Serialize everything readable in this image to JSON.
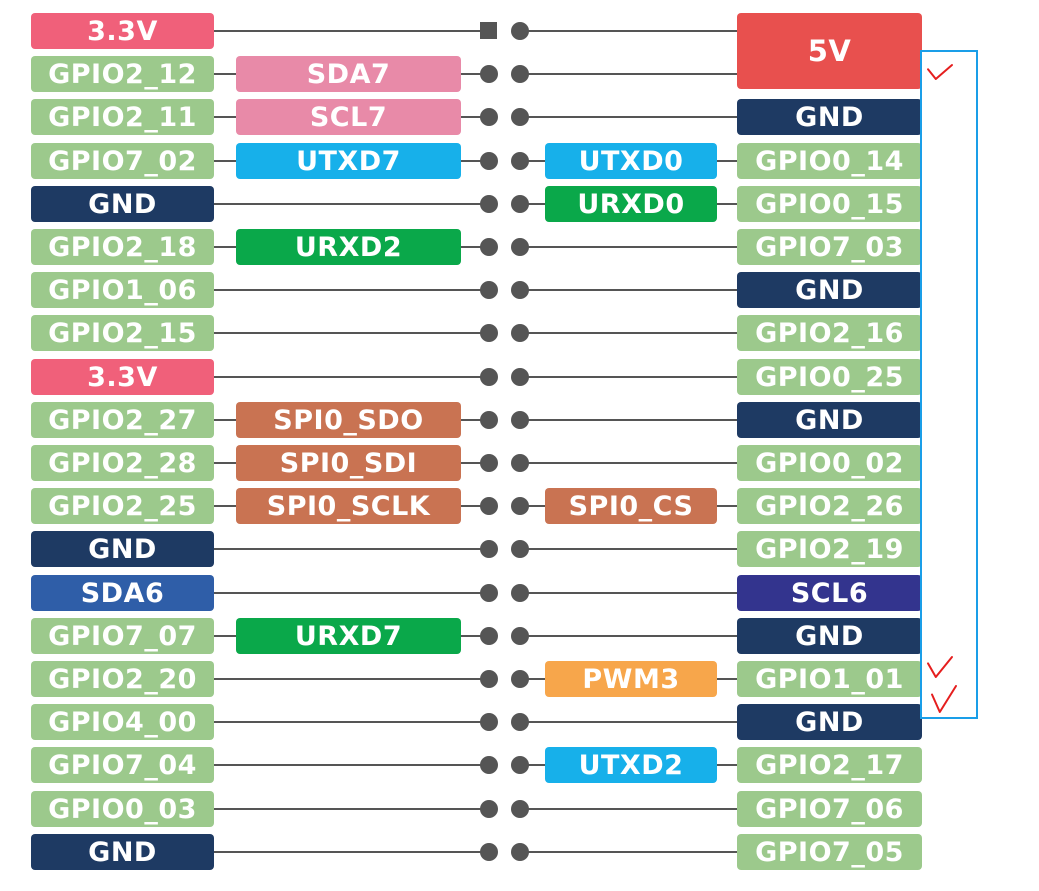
{
  "colors": {
    "power_3v3": "#f0607a",
    "power_5v": "#e8504e",
    "gpio": "#9cc98c",
    "gnd": "#1e3a63",
    "i2c7": "#e88aa8",
    "uart_blue": "#17b0ea",
    "uart_green": "#0aa84a",
    "spi": "#c97352",
    "sda6": "#2f5ea8",
    "scl6": "#33348e",
    "pwm": "#f7a64b",
    "bracket": "#1a9ee8",
    "check": "#e51e1e"
  },
  "rows": [
    {
      "left": {
        "label": "3.3V",
        "kind": "power_3v3"
      },
      "left_func": null,
      "right_func": null,
      "right": {
        "label": "5V",
        "kind": "power_5v"
      }
    },
    {
      "left": {
        "label": "GPIO2_12",
        "kind": "gpio"
      },
      "left_func": {
        "label": "SDA7",
        "kind": "i2c7"
      },
      "right_func": null,
      "right": null
    },
    {
      "left": {
        "label": "GPIO2_11",
        "kind": "gpio"
      },
      "left_func": {
        "label": "SCL7",
        "kind": "i2c7"
      },
      "right_func": null,
      "right": {
        "label": "GND",
        "kind": "gnd"
      }
    },
    {
      "left": {
        "label": "GPIO7_02",
        "kind": "gpio"
      },
      "left_func": {
        "label": "UTXD7",
        "kind": "uart_blue"
      },
      "right_func": {
        "label": "UTXD0",
        "kind": "uart_blue"
      },
      "right": {
        "label": "GPIO0_14",
        "kind": "gpio"
      }
    },
    {
      "left": {
        "label": "GND",
        "kind": "gnd"
      },
      "left_func": null,
      "right_func": {
        "label": "URXD0",
        "kind": "uart_green"
      },
      "right": {
        "label": "GPIO0_15",
        "kind": "gpio"
      }
    },
    {
      "left": {
        "label": "GPIO2_18",
        "kind": "gpio"
      },
      "left_func": {
        "label": "URXD2",
        "kind": "uart_green"
      },
      "right_func": null,
      "right": {
        "label": "GPIO7_03",
        "kind": "gpio"
      }
    },
    {
      "left": {
        "label": "GPIO1_06",
        "kind": "gpio"
      },
      "left_func": null,
      "right_func": null,
      "right": {
        "label": "GND",
        "kind": "gnd"
      }
    },
    {
      "left": {
        "label": "GPIO2_15",
        "kind": "gpio"
      },
      "left_func": null,
      "right_func": null,
      "right": {
        "label": "GPIO2_16",
        "kind": "gpio"
      }
    },
    {
      "left": {
        "label": "3.3V",
        "kind": "power_3v3"
      },
      "left_func": null,
      "right_func": null,
      "right": {
        "label": "GPIO0_25",
        "kind": "gpio"
      }
    },
    {
      "left": {
        "label": "GPIO2_27",
        "kind": "gpio"
      },
      "left_func": {
        "label": "SPI0_SDO",
        "kind": "spi"
      },
      "right_func": null,
      "right": {
        "label": "GND",
        "kind": "gnd"
      }
    },
    {
      "left": {
        "label": "GPIO2_28",
        "kind": "gpio"
      },
      "left_func": {
        "label": "SPI0_SDI",
        "kind": "spi"
      },
      "right_func": null,
      "right": {
        "label": "GPIO0_02",
        "kind": "gpio"
      }
    },
    {
      "left": {
        "label": "GPIO2_25",
        "kind": "gpio"
      },
      "left_func": {
        "label": "SPI0_SCLK",
        "kind": "spi"
      },
      "right_func": {
        "label": "SPI0_CS",
        "kind": "spi"
      },
      "right": {
        "label": "GPIO2_26",
        "kind": "gpio"
      }
    },
    {
      "left": {
        "label": "GND",
        "kind": "gnd"
      },
      "left_func": null,
      "right_func": null,
      "right": {
        "label": "GPIO2_19",
        "kind": "gpio"
      }
    },
    {
      "left": {
        "label": "SDA6",
        "kind": "sda6"
      },
      "left_func": null,
      "right_func": null,
      "right": {
        "label": "SCL6",
        "kind": "scl6"
      }
    },
    {
      "left": {
        "label": "GPIO7_07",
        "kind": "gpio"
      },
      "left_func": {
        "label": "URXD7",
        "kind": "uart_green"
      },
      "right_func": null,
      "right": {
        "label": "GND",
        "kind": "gnd"
      }
    },
    {
      "left": {
        "label": "GPIO2_20",
        "kind": "gpio"
      },
      "left_func": null,
      "right_func": {
        "label": "PWM3",
        "kind": "pwm"
      },
      "right": {
        "label": "GPIO1_01",
        "kind": "gpio"
      }
    },
    {
      "left": {
        "label": "GPIO4_00",
        "kind": "gpio"
      },
      "left_func": null,
      "right_func": null,
      "right": {
        "label": "GND",
        "kind": "gnd"
      }
    },
    {
      "left": {
        "label": "GPIO7_04",
        "kind": "gpio"
      },
      "left_func": null,
      "right_func": {
        "label": "UTXD2",
        "kind": "uart_blue"
      },
      "right": {
        "label": "GPIO2_17",
        "kind": "gpio"
      }
    },
    {
      "left": {
        "label": "GPIO0_03",
        "kind": "gpio"
      },
      "left_func": null,
      "right_func": null,
      "right": {
        "label": "GPIO7_06",
        "kind": "gpio"
      }
    },
    {
      "left": {
        "label": "GND",
        "kind": "gnd"
      },
      "left_func": null,
      "right_func": null,
      "right": {
        "label": "GPIO7_05",
        "kind": "gpio"
      }
    }
  ],
  "checkmarks": [
    "row-2",
    "row-16",
    "row-17"
  ]
}
